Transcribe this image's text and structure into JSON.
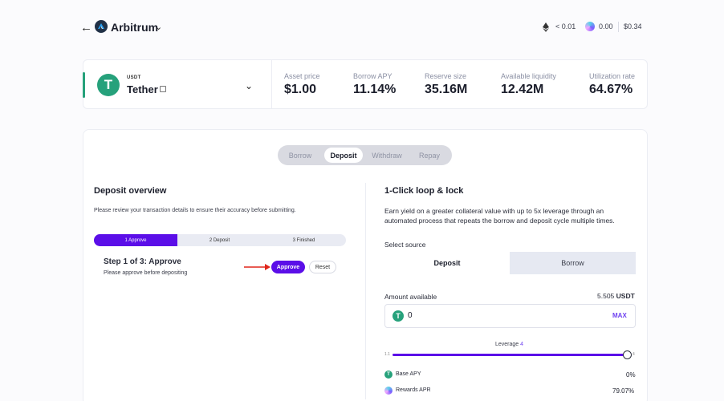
{
  "header": {
    "back_icon": "arrow-left-icon",
    "chain_name": "Arbitrum",
    "chain_chevron": "chevron-down-icon",
    "eth_balance": "< 0.01",
    "reward_balance": "0.00",
    "usd_balance": "$0.34"
  },
  "asset": {
    "symbol": "USDT",
    "name": "Tether",
    "logo_glyph": "T",
    "brand_color": "#26a17b",
    "stats": [
      {
        "label": "Asset price",
        "value": "$1.00"
      },
      {
        "label": "Borrow APY",
        "value": "11.14%"
      },
      {
        "label": "Reserve size",
        "value": "35.16M"
      },
      {
        "label": "Available liquidity",
        "value": "12.42M"
      },
      {
        "label": "Utilization rate",
        "value": "64.67%"
      }
    ]
  },
  "tabs": [
    "Borrow",
    "Deposit",
    "Withdraw",
    "Repay"
  ],
  "active_tab": "Deposit",
  "deposit_overview": {
    "title": "Deposit overview",
    "description": "Please review your transaction details to ensure their accuracy before submitting.",
    "steps": [
      "1 Approve",
      "2 Deposit",
      "3 Finished"
    ],
    "step_title": "Step 1 of 3: Approve",
    "step_subtitle": "Please approve before depositing",
    "approve_label": "Approve",
    "reset_label": "Reset"
  },
  "loop": {
    "title": "1-Click loop & lock",
    "description": "Earn yield on a greater collateral value with up to 5x leverage through an automated process that repeats the borrow and deposit cycle multiple times.",
    "select_source_label": "Select source",
    "source_options": [
      "Deposit",
      "Borrow"
    ],
    "selected_source": "Deposit",
    "amount_label": "Amount available",
    "amount_available": "5.505",
    "amount_unit": "USDT",
    "amount_input_value": "0",
    "max_label": "MAX",
    "leverage_label": "Leverage",
    "leverage_value": "4",
    "leverage_min": "1.1",
    "leverage_max": "4",
    "leverage_fraction": 1.0,
    "base_apy_label": "Base APY",
    "base_apy_value": "0%",
    "rewards_apr_label": "Rewards APR",
    "rewards_apr_value": "79.07%"
  },
  "colors": {
    "accent": "#5b0ee8",
    "accent_text": "#6f42f0",
    "tether": "#26a17b"
  }
}
